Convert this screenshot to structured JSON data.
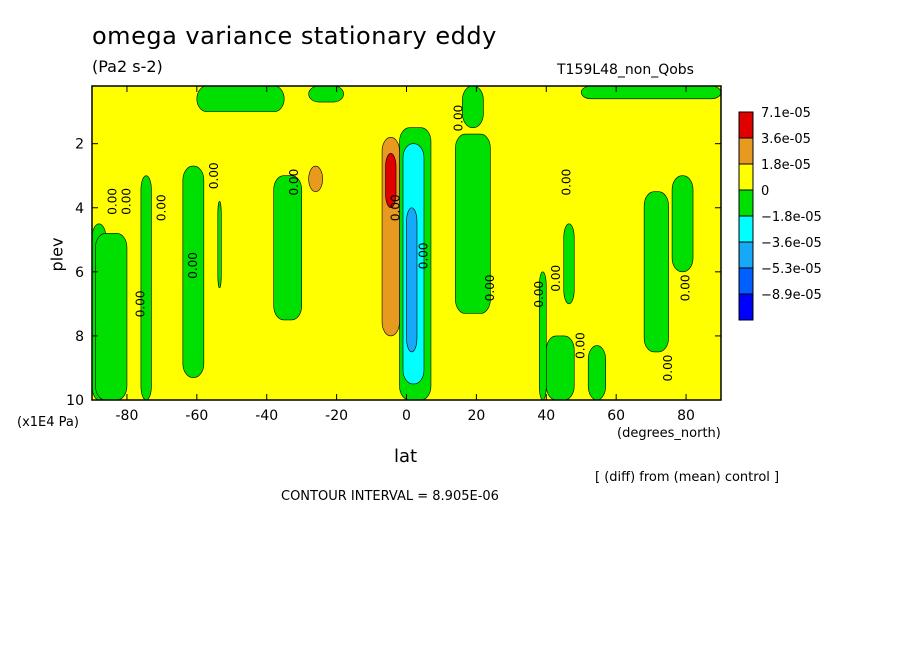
{
  "header": {
    "title": "omega variance stationary eddy",
    "units": "(Pa2 s-2)",
    "experiment": "T159L48_non_Qobs"
  },
  "footer": {
    "y_units": "(x1E4 Pa)",
    "x_units": "(degrees_north)",
    "diff_note": "[ (diff) from (mean) control ]",
    "contour_interval": "CONTOUR INTERVAL = 8.905E-06"
  },
  "chart_data": {
    "type": "heatmap",
    "title": "omega variance stationary eddy",
    "xlabel": "lat",
    "ylabel": "plev",
    "xlim": [
      -90,
      90
    ],
    "ylim": [
      10,
      0.2
    ],
    "x_ticks": [
      -80,
      -60,
      -40,
      -20,
      0,
      20,
      40,
      60,
      80
    ],
    "y_ticks": [
      2,
      4,
      6,
      8,
      10
    ],
    "legend_position": "right",
    "legend": [
      {
        "label": "7.1e-05",
        "color": "#e00000"
      },
      {
        "label": "3.6e-05",
        "color": "#e89a20"
      },
      {
        "label": "1.8e-05",
        "color": "#ffff00"
      },
      {
        "label": "0",
        "color": "#00e000"
      },
      {
        "label": "−1.8e-05",
        "color": "#00ffff"
      },
      {
        "label": "−3.6e-05",
        "color": "#18a8f8"
      },
      {
        "label": "−5.3e-05",
        "color": "#0060ff"
      },
      {
        "label": "−8.9e-05",
        "color": ""
      }
    ],
    "regions": [
      {
        "level": "neg",
        "x0": -90,
        "x1": -86,
        "y0": 4.5,
        "y1": 10
      },
      {
        "level": "neg",
        "x0": -89,
        "x1": -80,
        "y0": 4.8,
        "y1": 10
      },
      {
        "level": "neg",
        "x0": -76,
        "x1": -73,
        "y0": 3.0,
        "y1": 10
      },
      {
        "level": "neg",
        "x0": -64,
        "x1": -58,
        "y0": 2.7,
        "y1": 9.3
      },
      {
        "level": "neg",
        "x0": -54,
        "x1": -53,
        "y0": 3.8,
        "y1": 6.5
      },
      {
        "level": "neg",
        "x0": -38,
        "x1": -30,
        "y0": 3.0,
        "y1": 7.5
      },
      {
        "level": "neg",
        "x0": -60,
        "x1": -35,
        "y0": 0.2,
        "y1": 1.0
      },
      {
        "level": "neg",
        "x0": -28,
        "x1": -18,
        "y0": 0.2,
        "y1": 0.7
      },
      {
        "level": "neg",
        "x0": -2,
        "x1": 7,
        "y0": 1.5,
        "y1": 10
      },
      {
        "level": "neg",
        "x0": 14,
        "x1": 24,
        "y0": 1.7,
        "y1": 7.3
      },
      {
        "level": "neg",
        "x0": 16,
        "x1": 22,
        "y0": 0.2,
        "y1": 1.5
      },
      {
        "level": "neg",
        "x0": 38,
        "x1": 40,
        "y0": 6.0,
        "y1": 10
      },
      {
        "level": "neg",
        "x0": 40,
        "x1": 48,
        "y0": 8.0,
        "y1": 10
      },
      {
        "level": "neg",
        "x0": 45,
        "x1": 48,
        "y0": 4.5,
        "y1": 7.0
      },
      {
        "level": "neg",
        "x0": 52,
        "x1": 57,
        "y0": 8.3,
        "y1": 10
      },
      {
        "level": "neg",
        "x0": 68,
        "x1": 75,
        "y0": 3.5,
        "y1": 8.5
      },
      {
        "level": "neg",
        "x0": 76,
        "x1": 82,
        "y0": 3.0,
        "y1": 6.0
      },
      {
        "level": "neg",
        "x0": 50,
        "x1": 90,
        "y0": 0.2,
        "y1": 0.6
      },
      {
        "level": "pos1",
        "x0": -28,
        "x1": -24,
        "y0": 2.7,
        "y1": 3.5
      },
      {
        "level": "pos1",
        "x0": -7,
        "x1": -2,
        "y0": 1.8,
        "y1": 8.0
      },
      {
        "level": "pos2",
        "x0": -6,
        "x1": -3,
        "y0": 2.3,
        "y1": 4.0
      },
      {
        "level": "neg2",
        "x0": -1,
        "x1": 5,
        "y0": 2.0,
        "y1": 9.5
      },
      {
        "level": "neg3",
        "x0": 0,
        "x1": 3,
        "y0": 4.0,
        "y1": 8.5
      }
    ],
    "contour_labels": [
      {
        "text": "0.00",
        "x": -83,
        "y": 3.8
      },
      {
        "text": "0.00",
        "x": -79,
        "y": 3.8
      },
      {
        "text": "0.00",
        "x": -69,
        "y": 4.0
      },
      {
        "text": "0.00",
        "x": -54,
        "y": 3.0
      },
      {
        "text": "0.00",
        "x": -60,
        "y": 5.8
      },
      {
        "text": "0.00",
        "x": -75,
        "y": 7.0
      },
      {
        "text": "0.00",
        "x": -31,
        "y": 3.2
      },
      {
        "text": "0.00",
        "x": -2,
        "y": 4.0
      },
      {
        "text": "0.00",
        "x": 6,
        "y": 5.5
      },
      {
        "text": "0.00",
        "x": 16,
        "y": 1.2
      },
      {
        "text": "0.00",
        "x": 25,
        "y": 6.5
      },
      {
        "text": "0.00",
        "x": 39,
        "y": 6.7
      },
      {
        "text": "0.00",
        "x": 44,
        "y": 6.2
      },
      {
        "text": "0.00",
        "x": 51,
        "y": 8.3
      },
      {
        "text": "0.00",
        "x": 47,
        "y": 3.2
      },
      {
        "text": "0.00",
        "x": 81,
        "y": 6.5
      },
      {
        "text": "0.00",
        "x": 76,
        "y": 9.0
      }
    ]
  }
}
